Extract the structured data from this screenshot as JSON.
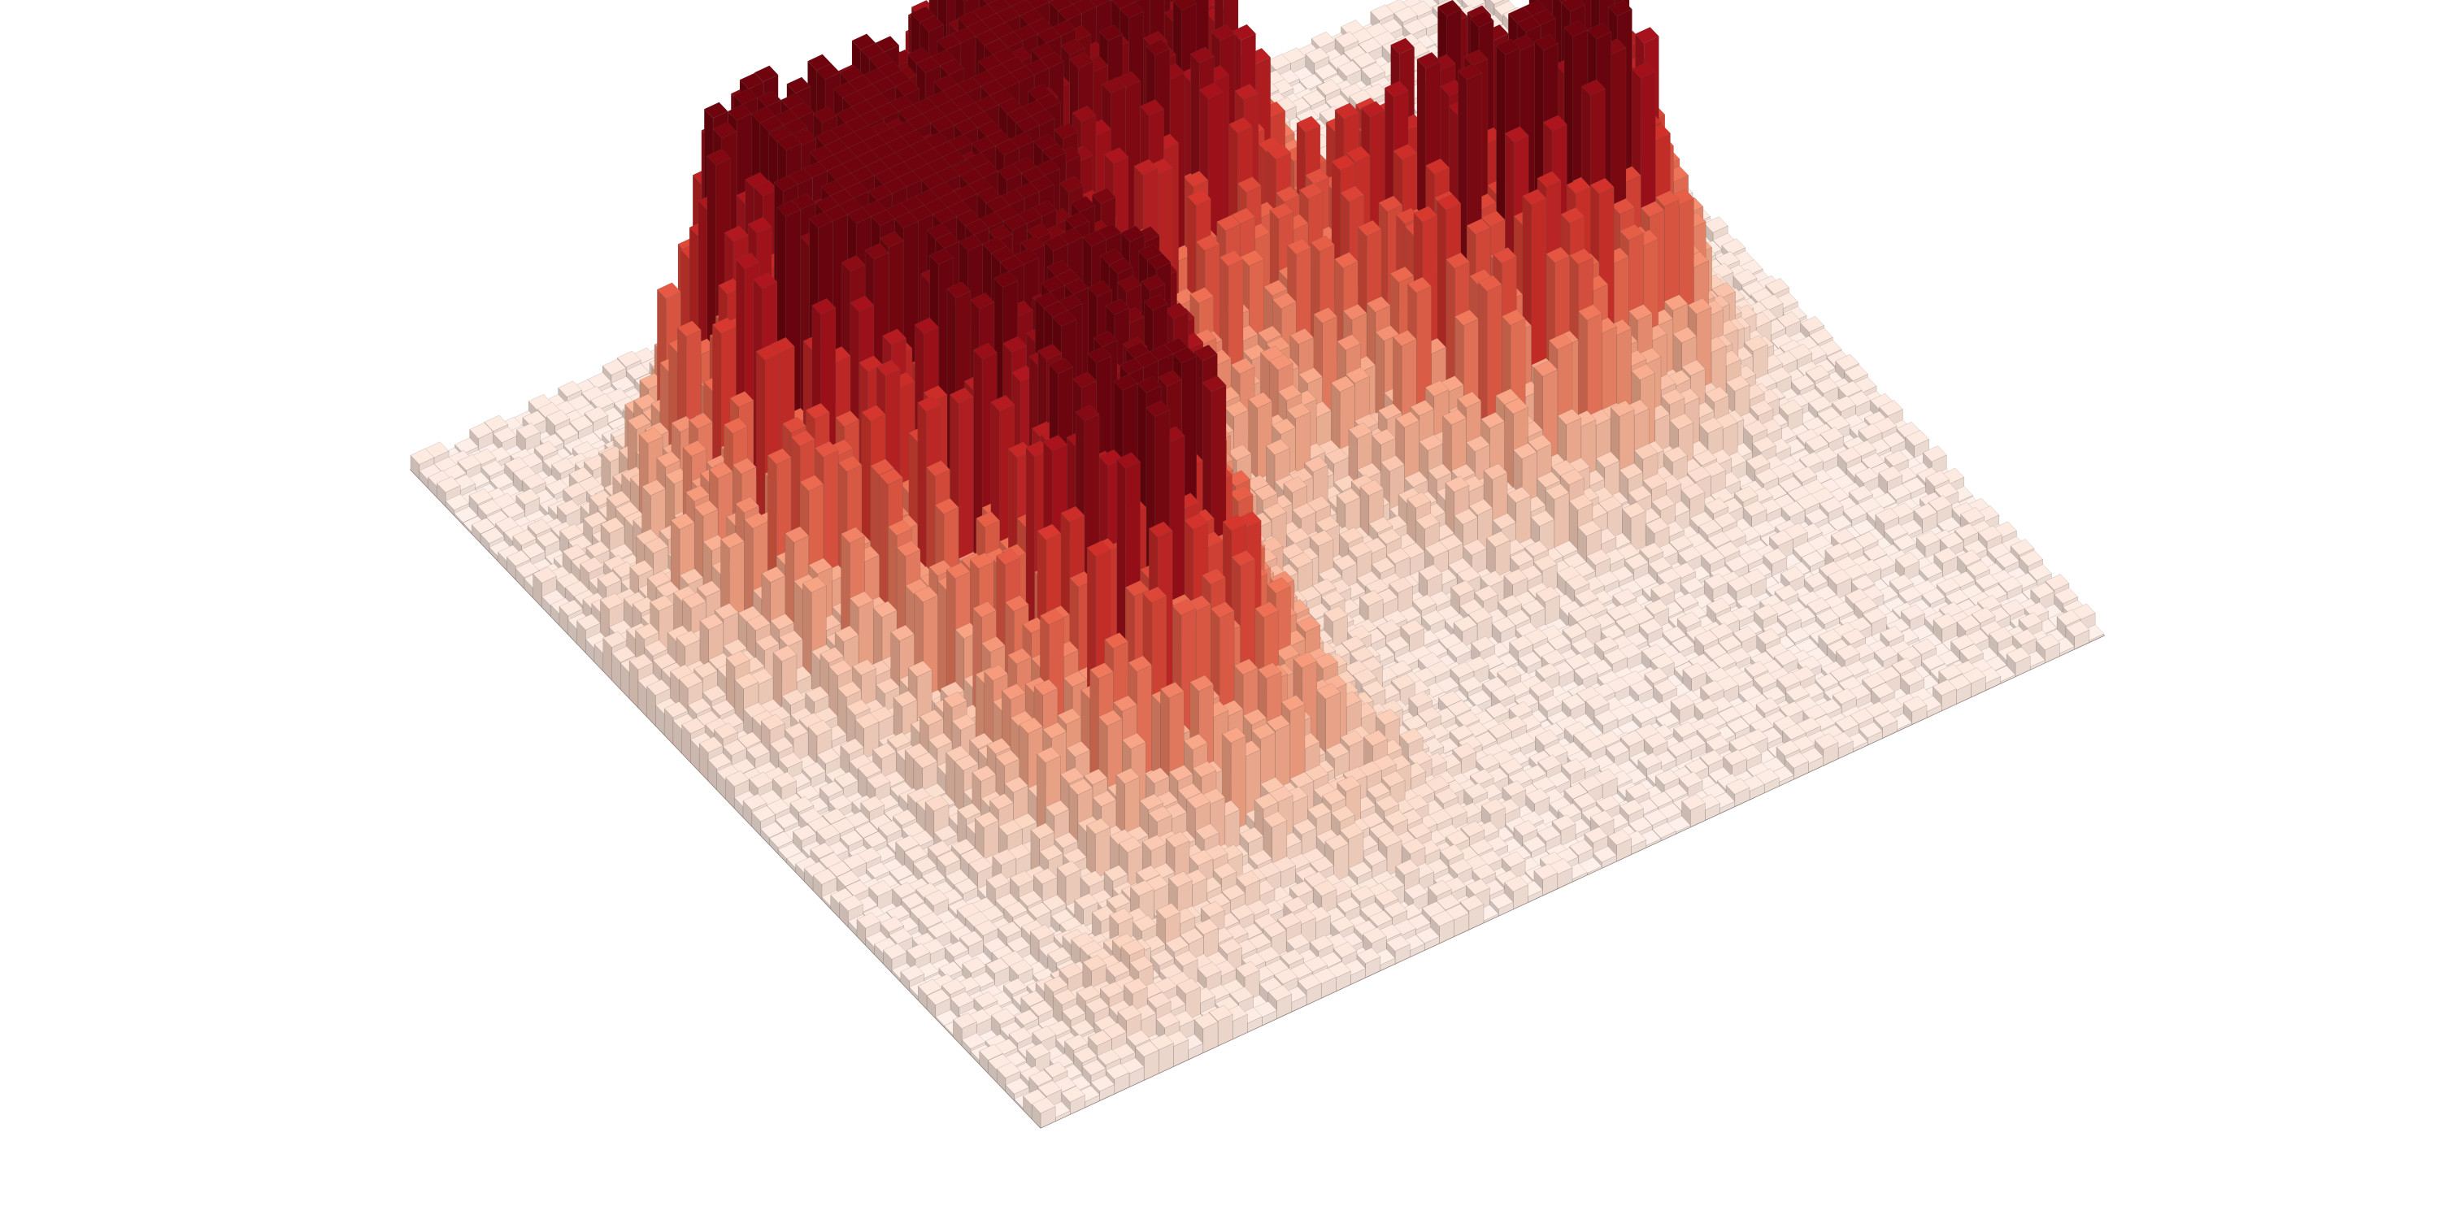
{
  "chart_data": {
    "type": "bar3d",
    "title": "",
    "xlabel": "",
    "ylabel": "",
    "zlabel": "",
    "grid": false,
    "axes_visible": false,
    "legend": "none",
    "colormap": "Reds",
    "color_low": "#fdf0ea",
    "color_high": "#7a0510",
    "edge_color": "#6a5550",
    "grid_size": [
      72,
      72
    ],
    "z_range": [
      0,
      100
    ],
    "background_level": 4,
    "density_peaks": [
      {
        "x": 20,
        "y": 22,
        "height": 78,
        "spread": 5.5
      },
      {
        "x": 22,
        "y": 33,
        "height": 86,
        "spread": 5.5
      },
      {
        "x": 16,
        "y": 46,
        "height": 100,
        "spread": 6.5
      },
      {
        "x": 22,
        "y": 49,
        "height": 72,
        "spread": 6.0
      },
      {
        "x": 13,
        "y": 57,
        "height": 54,
        "spread": 3.5
      },
      {
        "x": 33,
        "y": 57,
        "height": 92,
        "spread": 7.0
      },
      {
        "x": 39,
        "y": 51,
        "height": 40,
        "spread": 6.0
      },
      {
        "x": 53,
        "y": 33,
        "height": 50,
        "spread": 5.0
      },
      {
        "x": 50,
        "y": 41,
        "height": 42,
        "spread": 5.0
      },
      {
        "x": 59,
        "y": 35,
        "height": 62,
        "spread": 4.0
      },
      {
        "x": 43,
        "y": 38,
        "height": 14,
        "spread": 8.0
      },
      {
        "x": 27,
        "y": 13,
        "height": 12,
        "spread": 5.0
      },
      {
        "x": 14,
        "y": 8,
        "height": 10,
        "spread": 3.5
      },
      {
        "x": 8,
        "y": 5,
        "height": 7,
        "spread": 3.0
      },
      {
        "x": 35,
        "y": 41,
        "height": 10,
        "spread": 6.0
      },
      {
        "x": 58,
        "y": 46,
        "height": 6,
        "spread": 4.0
      },
      {
        "x": 46,
        "y": 58,
        "height": 8,
        "spread": 6.0
      }
    ]
  }
}
